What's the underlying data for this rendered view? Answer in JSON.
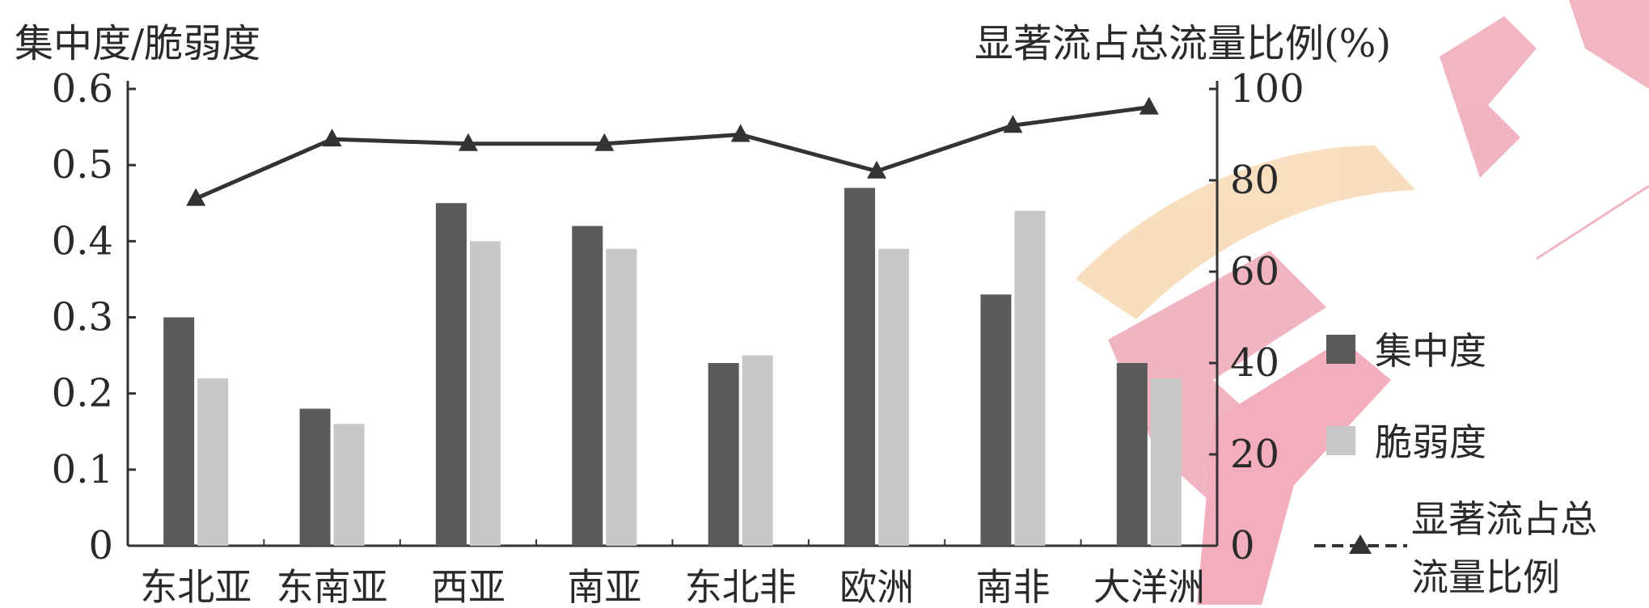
{
  "chart_data": {
    "type": "bar",
    "categories": [
      "东北亚",
      "东南亚",
      "西亚",
      "南亚",
      "东北非",
      "欧洲",
      "南非",
      "大洋洲"
    ],
    "series": [
      {
        "name": "集中度",
        "kind": "bar",
        "axis": "left",
        "color": "#5a5a5a",
        "values": [
          0.3,
          0.18,
          0.45,
          0.42,
          0.24,
          0.47,
          0.33,
          0.24
        ]
      },
      {
        "name": "脆弱度",
        "kind": "bar",
        "axis": "left",
        "color": "#c8c8c8",
        "values": [
          0.22,
          0.16,
          0.4,
          0.39,
          0.25,
          0.39,
          0.44,
          0.22
        ]
      },
      {
        "name": "显著流占总流量比例",
        "legend_lines": [
          "显著流占总",
          "流量比例"
        ],
        "kind": "line",
        "axis": "right",
        "color": "#333333",
        "values": [
          76,
          89,
          88,
          88,
          90,
          82,
          92,
          96
        ]
      }
    ],
    "left_axis": {
      "label": "集中度/脆弱度",
      "ylim": [
        0,
        0.6
      ],
      "ticks": [
        "0",
        "0.1",
        "0.2",
        "0.3",
        "0.4",
        "0.5",
        "0.6"
      ]
    },
    "right_axis": {
      "label": "显著流占总流量比例(%)",
      "ylim": [
        0,
        100
      ],
      "ticks": [
        "0",
        "20",
        "40",
        "60",
        "80",
        "100"
      ]
    },
    "grid": false,
    "legend_position": "right"
  }
}
